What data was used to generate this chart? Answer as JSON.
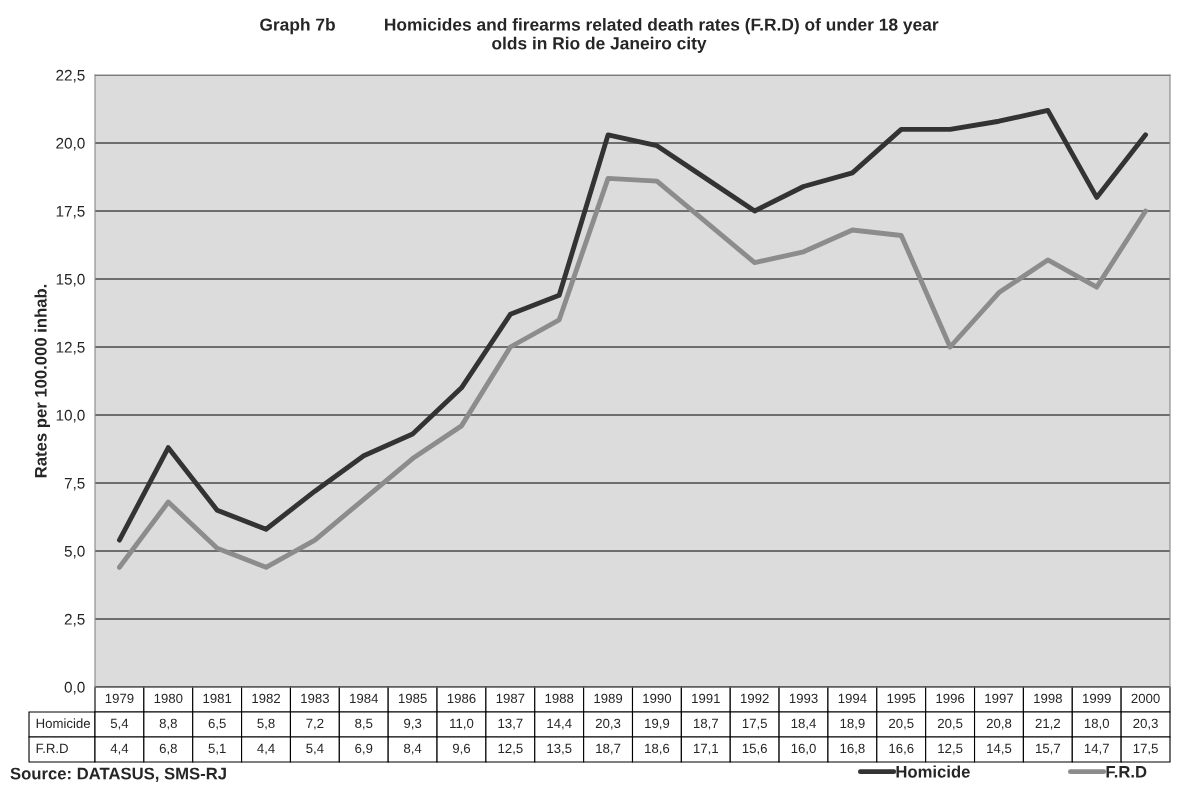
{
  "chart_data": {
    "type": "line",
    "title": "Graph 7b          Homicides and firearms related death rates (F.R.D) of under 18 year\nolds in Rio de Janeiro city",
    "ylabel": "Rates per 100.000 inhab.",
    "categories": [
      "1979",
      "1980",
      "1981",
      "1982",
      "1983",
      "1984",
      "1985",
      "1986",
      "1987",
      "1988",
      "1989",
      "1990",
      "1991",
      "1992",
      "1993",
      "1994",
      "1995",
      "1996",
      "1997",
      "1998",
      "1999",
      "2000"
    ],
    "series": [
      {
        "name": "Homicide",
        "color": "#333333",
        "values": [
          5.4,
          8.8,
          6.5,
          5.8,
          7.2,
          8.5,
          9.3,
          11.0,
          13.7,
          14.4,
          20.3,
          19.9,
          18.7,
          17.5,
          18.4,
          18.9,
          20.5,
          20.5,
          20.8,
          21.2,
          18.0,
          20.3
        ],
        "value_labels": [
          "5,4",
          "8,8",
          "6,5",
          "5,8",
          "7,2",
          "8,5",
          "9,3",
          "11,0",
          "13,7",
          "14,4",
          "20,3",
          "19,9",
          "18,7",
          "17,5",
          "18,4",
          "18,9",
          "20,5",
          "20,5",
          "20,8",
          "21,2",
          "18,0",
          "20,3"
        ]
      },
      {
        "name": "F.R.D",
        "color": "#8c8c8c",
        "values": [
          4.4,
          6.8,
          5.1,
          4.4,
          5.4,
          6.9,
          8.4,
          9.6,
          12.5,
          13.5,
          18.7,
          18.6,
          17.1,
          15.6,
          16.0,
          16.8,
          16.6,
          12.5,
          14.5,
          15.7,
          14.7,
          17.5
        ],
        "value_labels": [
          "4,4",
          "6,8",
          "5,1",
          "4,4",
          "5,4",
          "6,9",
          "8,4",
          "9,6",
          "12,5",
          "13,5",
          "18,7",
          "18,6",
          "17,1",
          "15,6",
          "16,0",
          "16,8",
          "16,6",
          "12,5",
          "14,5",
          "15,7",
          "14,7",
          "17,5"
        ]
      }
    ],
    "ylim": [
      0,
      22.5
    ],
    "yticks": [
      {
        "value": 0,
        "label": "0,0"
      },
      {
        "value": 2.5,
        "label": "2,5"
      },
      {
        "value": 5,
        "label": "5,0"
      },
      {
        "value": 7.5,
        "label": "7,5"
      },
      {
        "value": 10,
        "label": "10,0"
      },
      {
        "value": 12.5,
        "label": "12,5"
      },
      {
        "value": 15,
        "label": "15,0"
      },
      {
        "value": 17.5,
        "label": "17,5"
      },
      {
        "value": 20,
        "label": "20,0"
      },
      {
        "value": 22.5,
        "label": "22,5"
      }
    ],
    "grid": "y",
    "legend": "bottom right",
    "marker": "none",
    "line_style": "solid",
    "annotations": [
      "Source: DATASUS, SMS-RJ"
    ]
  }
}
